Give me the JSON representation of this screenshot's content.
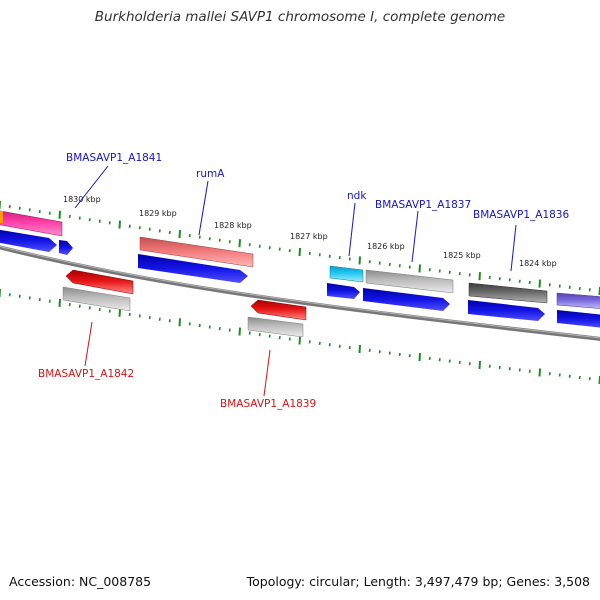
{
  "title": "Burkholderia mallei SAVP1 chromosome I, complete genome",
  "footer": {
    "accession": "Accession: NC_008785",
    "topology": "Topology: circular; Length: 3,497,479 bp; Genes: 3,508"
  },
  "scale_labels": [
    "1830 kbp",
    "1829 kbp",
    "1828 kbp",
    "1827 kbp",
    "1826 kbp",
    "1825 kbp",
    "1824 kbp"
  ],
  "gene_labels": {
    "forward": [
      "BMASAVP1_A1841",
      "rumA",
      "ndk",
      "BMASAVP1_A1837",
      "BMASAVP1_A1836"
    ],
    "reverse": [
      "BMASAVP1_A1842",
      "BMASAVP1_A1839"
    ]
  },
  "colors": {
    "backbone": "#777777",
    "tick": "#1e8c1e",
    "cds": "#1414e6",
    "reverse_gene": "#e61414",
    "forward_label": "#1414c8",
    "reverse_label": "#d21414"
  }
}
